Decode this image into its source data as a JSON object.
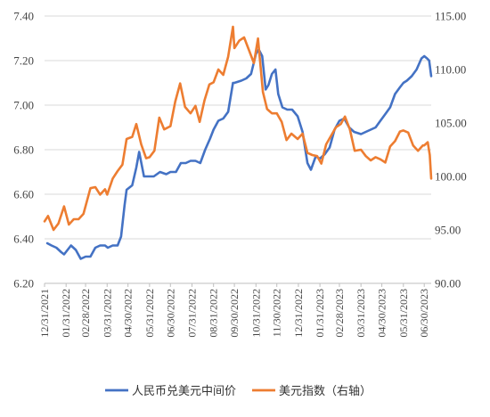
{
  "chart_data": {
    "type": "line",
    "title": "",
    "xlabel": "",
    "ylabel": "",
    "y_left": {
      "min": 6.2,
      "max": 7.4,
      "ticks": [
        "6.20",
        "6.40",
        "6.60",
        "6.80",
        "7.00",
        "7.20",
        "7.40"
      ]
    },
    "y_right": {
      "min": 90,
      "max": 115,
      "ticks": [
        "90.00",
        "95.00",
        "100.00",
        "105.00",
        "110.00",
        "115.00"
      ]
    },
    "x_range": [
      "2021-12-31",
      "2023-07-10"
    ],
    "x_ticks": [
      "12/31/2021",
      "01/31/2022",
      "02/28/2022",
      "03/31/2022",
      "04/30/2022",
      "05/31/2022",
      "06/30/2022",
      "07/31/2022",
      "08/31/2022",
      "09/30/2022",
      "10/31/2022",
      "11/30/2022",
      "12/31/2022",
      "01/31/2023",
      "02/28/2023",
      "03/31/2023",
      "04/30/2023",
      "05/31/2023",
      "06/30/2023"
    ],
    "x_tick_dates": [
      "2021-12-31",
      "2022-01-31",
      "2022-02-28",
      "2022-03-31",
      "2022-04-30",
      "2022-05-31",
      "2022-06-30",
      "2022-07-31",
      "2022-08-31",
      "2022-09-30",
      "2022-10-31",
      "2022-11-30",
      "2022-12-31",
      "2023-01-31",
      "2023-02-28",
      "2023-03-31",
      "2023-04-30",
      "2023-05-31",
      "2023-06-30"
    ],
    "grid": "horizontal",
    "legend_position": "bottom",
    "series": [
      {
        "name": "人民币兑美元中间价",
        "axis": "left",
        "color": "#4472C4",
        "points": [
          [
            "2022-01-04",
            6.38
          ],
          [
            "2022-01-10",
            6.37
          ],
          [
            "2022-01-17",
            6.36
          ],
          [
            "2022-01-24",
            6.34
          ],
          [
            "2022-01-28",
            6.33
          ],
          [
            "2022-02-07",
            6.37
          ],
          [
            "2022-02-14",
            6.35
          ],
          [
            "2022-02-21",
            6.31
          ],
          [
            "2022-02-28",
            6.32
          ],
          [
            "2022-03-07",
            6.32
          ],
          [
            "2022-03-14",
            6.36
          ],
          [
            "2022-03-21",
            6.37
          ],
          [
            "2022-03-28",
            6.37
          ],
          [
            "2022-04-01",
            6.36
          ],
          [
            "2022-04-08",
            6.37
          ],
          [
            "2022-04-15",
            6.37
          ],
          [
            "2022-04-20",
            6.41
          ],
          [
            "2022-04-25",
            6.55
          ],
          [
            "2022-04-28",
            6.62
          ],
          [
            "2022-05-06",
            6.64
          ],
          [
            "2022-05-12",
            6.72
          ],
          [
            "2022-05-16",
            6.79
          ],
          [
            "2022-05-23",
            6.68
          ],
          [
            "2022-05-31",
            6.68
          ],
          [
            "2022-06-06",
            6.68
          ],
          [
            "2022-06-15",
            6.7
          ],
          [
            "2022-06-24",
            6.69
          ],
          [
            "2022-06-30",
            6.7
          ],
          [
            "2022-07-08",
            6.7
          ],
          [
            "2022-07-15",
            6.74
          ],
          [
            "2022-07-22",
            6.74
          ],
          [
            "2022-07-29",
            6.75
          ],
          [
            "2022-08-05",
            6.75
          ],
          [
            "2022-08-12",
            6.74
          ],
          [
            "2022-08-19",
            6.8
          ],
          [
            "2022-08-26",
            6.85
          ],
          [
            "2022-08-31",
            6.89
          ],
          [
            "2022-09-07",
            6.93
          ],
          [
            "2022-09-14",
            6.94
          ],
          [
            "2022-09-21",
            6.97
          ],
          [
            "2022-09-28",
            7.1
          ],
          [
            "2022-09-30",
            7.1
          ],
          [
            "2022-10-10",
            7.11
          ],
          [
            "2022-10-17",
            7.12
          ],
          [
            "2022-10-24",
            7.14
          ],
          [
            "2022-10-31",
            7.23
          ],
          [
            "2022-11-04",
            7.25
          ],
          [
            "2022-11-09",
            7.22
          ],
          [
            "2022-11-14",
            7.07
          ],
          [
            "2022-11-18",
            7.09
          ],
          [
            "2022-11-23",
            7.14
          ],
          [
            "2022-11-28",
            7.16
          ],
          [
            "2022-12-02",
            7.05
          ],
          [
            "2022-12-08",
            6.99
          ],
          [
            "2022-12-15",
            6.98
          ],
          [
            "2022-12-22",
            6.98
          ],
          [
            "2022-12-30",
            6.95
          ],
          [
            "2023-01-06",
            6.88
          ],
          [
            "2023-01-13",
            6.74
          ],
          [
            "2023-01-18",
            6.71
          ],
          [
            "2023-01-25",
            6.77
          ],
          [
            "2023-01-31",
            6.76
          ],
          [
            "2023-02-07",
            6.78
          ],
          [
            "2023-02-14",
            6.81
          ],
          [
            "2023-02-21",
            6.89
          ],
          [
            "2023-02-28",
            6.93
          ],
          [
            "2023-03-07",
            6.94
          ],
          [
            "2023-03-14",
            6.9
          ],
          [
            "2023-03-21",
            6.88
          ],
          [
            "2023-03-31",
            6.87
          ],
          [
            "2023-04-07",
            6.88
          ],
          [
            "2023-04-14",
            6.89
          ],
          [
            "2023-04-21",
            6.9
          ],
          [
            "2023-04-28",
            6.93
          ],
          [
            "2023-05-05",
            6.96
          ],
          [
            "2023-05-12",
            6.99
          ],
          [
            "2023-05-19",
            7.05
          ],
          [
            "2023-05-26",
            7.08
          ],
          [
            "2023-05-31",
            7.1
          ],
          [
            "2023-06-05",
            7.11
          ],
          [
            "2023-06-12",
            7.13
          ],
          [
            "2023-06-19",
            7.16
          ],
          [
            "2023-06-26",
            7.21
          ],
          [
            "2023-06-30",
            7.22
          ],
          [
            "2023-07-04",
            7.21
          ],
          [
            "2023-07-07",
            7.2
          ],
          [
            "2023-07-10",
            7.13
          ]
        ]
      },
      {
        "name": "美元指数（右轴）",
        "axis": "right",
        "color": "#ED7D31",
        "points": [
          [
            "2021-12-31",
            95.8
          ],
          [
            "2022-01-05",
            96.3
          ],
          [
            "2022-01-13",
            95.0
          ],
          [
            "2022-01-20",
            95.6
          ],
          [
            "2022-01-28",
            97.2
          ],
          [
            "2022-02-04",
            95.5
          ],
          [
            "2022-02-11",
            96.0
          ],
          [
            "2022-02-18",
            96.0
          ],
          [
            "2022-02-25",
            96.5
          ],
          [
            "2022-03-07",
            98.9
          ],
          [
            "2022-03-14",
            99.0
          ],
          [
            "2022-03-21",
            98.3
          ],
          [
            "2022-03-28",
            98.8
          ],
          [
            "2022-03-31",
            98.3
          ],
          [
            "2022-04-08",
            99.8
          ],
          [
            "2022-04-15",
            100.5
          ],
          [
            "2022-04-22",
            101.1
          ],
          [
            "2022-04-28",
            103.5
          ],
          [
            "2022-05-06",
            103.7
          ],
          [
            "2022-05-12",
            104.9
          ],
          [
            "2022-05-19",
            103.0
          ],
          [
            "2022-05-26",
            101.7
          ],
          [
            "2022-05-31",
            101.8
          ],
          [
            "2022-06-07",
            102.4
          ],
          [
            "2022-06-14",
            105.5
          ],
          [
            "2022-06-21",
            104.4
          ],
          [
            "2022-06-30",
            104.7
          ],
          [
            "2022-07-07",
            107.0
          ],
          [
            "2022-07-14",
            108.7
          ],
          [
            "2022-07-21",
            106.5
          ],
          [
            "2022-07-29",
            105.9
          ],
          [
            "2022-08-05",
            106.6
          ],
          [
            "2022-08-11",
            105.1
          ],
          [
            "2022-08-18",
            107.1
          ],
          [
            "2022-08-25",
            108.6
          ],
          [
            "2022-08-31",
            108.8
          ],
          [
            "2022-09-07",
            110.0
          ],
          [
            "2022-09-14",
            109.5
          ],
          [
            "2022-09-21",
            111.2
          ],
          [
            "2022-09-28",
            114.0
          ],
          [
            "2022-09-30",
            112.0
          ],
          [
            "2022-10-07",
            112.7
          ],
          [
            "2022-10-14",
            113.0
          ],
          [
            "2022-10-21",
            111.8
          ],
          [
            "2022-10-28",
            110.6
          ],
          [
            "2022-11-03",
            112.9
          ],
          [
            "2022-11-10",
            107.9
          ],
          [
            "2022-11-16",
            106.3
          ],
          [
            "2022-11-23",
            105.9
          ],
          [
            "2022-11-30",
            105.9
          ],
          [
            "2022-12-07",
            105.1
          ],
          [
            "2022-12-14",
            103.4
          ],
          [
            "2022-12-21",
            104.0
          ],
          [
            "2022-12-30",
            103.5
          ],
          [
            "2023-01-06",
            104.0
          ],
          [
            "2023-01-13",
            102.2
          ],
          [
            "2023-01-20",
            102.0
          ],
          [
            "2023-01-27",
            101.9
          ],
          [
            "2023-02-02",
            101.2
          ],
          [
            "2023-02-09",
            103.0
          ],
          [
            "2023-02-16",
            103.8
          ],
          [
            "2023-02-23",
            104.6
          ],
          [
            "2023-03-02",
            104.9
          ],
          [
            "2023-03-08",
            105.6
          ],
          [
            "2023-03-15",
            104.4
          ],
          [
            "2023-03-22",
            102.4
          ],
          [
            "2023-03-31",
            102.5
          ],
          [
            "2023-04-07",
            101.9
          ],
          [
            "2023-04-14",
            101.5
          ],
          [
            "2023-04-21",
            101.8
          ],
          [
            "2023-04-28",
            101.6
          ],
          [
            "2023-05-05",
            101.3
          ],
          [
            "2023-05-12",
            102.8
          ],
          [
            "2023-05-19",
            103.3
          ],
          [
            "2023-05-26",
            104.2
          ],
          [
            "2023-05-31",
            104.3
          ],
          [
            "2023-06-07",
            104.1
          ],
          [
            "2023-06-14",
            102.9
          ],
          [
            "2023-06-21",
            102.4
          ],
          [
            "2023-06-28",
            102.9
          ],
          [
            "2023-06-30",
            102.9
          ],
          [
            "2023-07-05",
            103.2
          ],
          [
            "2023-07-08",
            102.0
          ],
          [
            "2023-07-10",
            99.8
          ]
        ]
      }
    ]
  }
}
